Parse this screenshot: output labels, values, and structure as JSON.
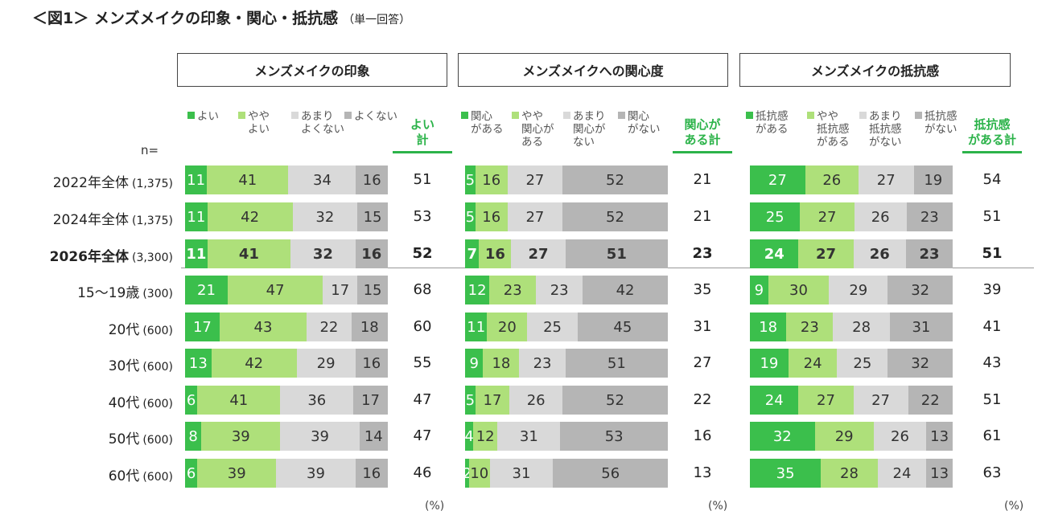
{
  "title": "＜図1＞ メンズメイクの印象・関心・抵抗感",
  "subtitle": "（単一回答）",
  "n_label": "n=",
  "colors": [
    "#3bbf4c",
    "#aee07a",
    "#d9d9d9",
    "#b5b5b5"
  ],
  "rows": [
    {
      "label": "2022年全体",
      "n": "(1,375)",
      "bold": false
    },
    {
      "label": "2024年全体",
      "n": "(1,375)",
      "bold": false
    },
    {
      "label": "2026年全体",
      "n": "(3,300)",
      "bold": true
    },
    {
      "label": "15～19歳",
      "n": "(300)",
      "bold": false
    },
    {
      "label": "20代",
      "n": "(600)",
      "bold": false
    },
    {
      "label": "30代",
      "n": "(600)",
      "bold": false
    },
    {
      "label": "40代",
      "n": "(600)",
      "bold": false
    },
    {
      "label": "50代",
      "n": "(600)",
      "bold": false
    },
    {
      "label": "60代",
      "n": "(600)",
      "bold": false
    }
  ],
  "panels": [
    {
      "title": "メンズメイクの印象",
      "legend": [
        "■よい",
        "■やや\nよい",
        "■あまり\nよくない",
        "■よくない"
      ],
      "sum_label": "よい\n計",
      "unit": "(%)"
    },
    {
      "title": "メンズメイクへの関心度",
      "legend": [
        "■関心\nがある",
        "■やや\n関心が\nある",
        "■あまり\n関心が\nない",
        "■関心\nがない"
      ],
      "sum_label": "関心が\nある計",
      "unit": "(%)"
    },
    {
      "title": "メンズメイクの抵抗感",
      "legend": [
        "■抵抗感\nがある",
        "■やや\n抵抗感\nがある",
        "■あまり\n抵抗感\nがない",
        "■抵抗感\nがない"
      ],
      "sum_label": "抵抗感\nがある計",
      "unit": "(%)"
    }
  ],
  "chart_data": [
    {
      "type": "bar",
      "stacked": true,
      "orientation": "horizontal",
      "title": "メンズメイクの印象",
      "categories": [
        "2022年全体",
        "2024年全体",
        "2026年全体",
        "15～19歳",
        "20代",
        "30代",
        "40代",
        "50代",
        "60代"
      ],
      "series": [
        {
          "name": "よい",
          "values": [
            11,
            11,
            11,
            21,
            17,
            13,
            6,
            8,
            6
          ]
        },
        {
          "name": "ややよい",
          "values": [
            41,
            42,
            41,
            47,
            43,
            42,
            41,
            39,
            39
          ]
        },
        {
          "name": "あまりよくない",
          "values": [
            34,
            32,
            32,
            17,
            22,
            29,
            36,
            39,
            39
          ]
        },
        {
          "name": "よくない",
          "values": [
            16,
            15,
            16,
            15,
            18,
            16,
            17,
            14,
            16
          ]
        }
      ],
      "totals": {
        "name": "よい計",
        "values": [
          51,
          53,
          52,
          68,
          60,
          55,
          47,
          47,
          46
        ]
      },
      "unit": "(%)"
    },
    {
      "type": "bar",
      "stacked": true,
      "orientation": "horizontal",
      "title": "メンズメイクへの関心度",
      "categories": [
        "2022年全体",
        "2024年全体",
        "2026年全体",
        "15～19歳",
        "20代",
        "30代",
        "40代",
        "50代",
        "60代"
      ],
      "series": [
        {
          "name": "関心がある",
          "values": [
            5,
            5,
            7,
            12,
            11,
            9,
            5,
            4,
            2
          ]
        },
        {
          "name": "やや関心がある",
          "values": [
            16,
            16,
            16,
            23,
            20,
            18,
            17,
            12,
            10
          ]
        },
        {
          "name": "あまり関心がない",
          "values": [
            27,
            27,
            27,
            23,
            25,
            23,
            26,
            31,
            31
          ]
        },
        {
          "name": "関心がない",
          "values": [
            52,
            52,
            51,
            42,
            45,
            51,
            52,
            53,
            56
          ]
        }
      ],
      "totals": {
        "name": "関心がある計",
        "values": [
          21,
          21,
          23,
          35,
          31,
          27,
          22,
          16,
          13
        ]
      },
      "unit": "(%)"
    },
    {
      "type": "bar",
      "stacked": true,
      "orientation": "horizontal",
      "title": "メンズメイクの抵抗感",
      "categories": [
        "2022年全体",
        "2024年全体",
        "2026年全体",
        "15～19歳",
        "20代",
        "30代",
        "40代",
        "50代",
        "60代"
      ],
      "series": [
        {
          "name": "抵抗感がある",
          "values": [
            27,
            25,
            24,
            9,
            18,
            19,
            24,
            32,
            35
          ]
        },
        {
          "name": "やや抵抗感がある",
          "values": [
            26,
            27,
            27,
            30,
            23,
            24,
            27,
            29,
            28
          ]
        },
        {
          "name": "あまり抵抗感がない",
          "values": [
            27,
            26,
            26,
            29,
            28,
            25,
            27,
            26,
            24
          ]
        },
        {
          "name": "抵抗感がない",
          "values": [
            19,
            23,
            23,
            32,
            31,
            32,
            22,
            13,
            13
          ]
        }
      ],
      "totals": {
        "name": "抵抗感がある計",
        "values": [
          54,
          51,
          51,
          39,
          41,
          43,
          51,
          61,
          63
        ]
      },
      "unit": "(%)"
    }
  ]
}
